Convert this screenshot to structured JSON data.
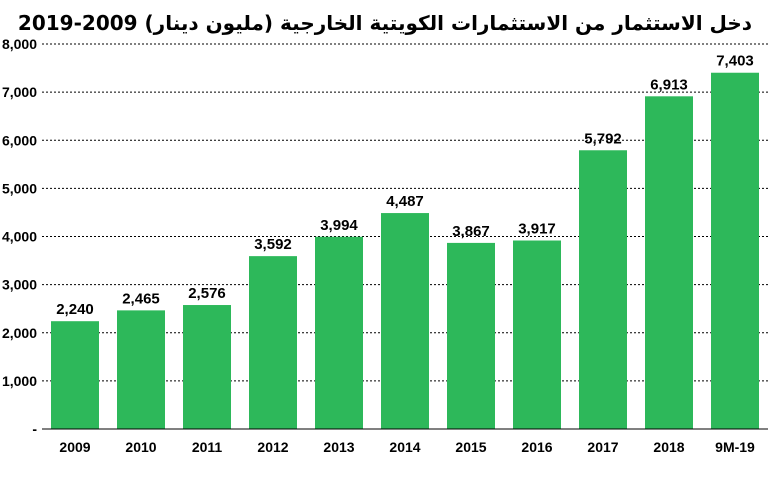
{
  "chart_data": {
    "type": "bar",
    "title": "دخل الاستثمار من الاستثمارات الكويتية الخارجية  (مليون دينار) 2009-2019",
    "xlabel": "",
    "ylabel": "",
    "categories": [
      "2009",
      "2010",
      "2011",
      "2012",
      "2013",
      "2014",
      "2015",
      "2016",
      "2017",
      "2018",
      "9M-19"
    ],
    "values": [
      2240,
      2465,
      2576,
      3592,
      3994,
      4487,
      3867,
      3917,
      5792,
      6913,
      7403
    ],
    "value_labels": [
      "2,240",
      "2,465",
      "2,576",
      "3,592",
      "3,994",
      "4,487",
      "3,867",
      "3,917",
      "5,792",
      "6,913",
      "7,403"
    ],
    "ylim": [
      0,
      8000
    ],
    "yticks": [
      0,
      1000,
      2000,
      3000,
      4000,
      5000,
      6000,
      7000,
      8000
    ],
    "ytick_labels": [
      "-",
      "1,000",
      "2,000",
      "3,000",
      "4,000",
      "5,000",
      "6,000",
      "7,000",
      "8,000"
    ],
    "grid": true,
    "legend": "none",
    "bar_color": "#2db85a"
  }
}
